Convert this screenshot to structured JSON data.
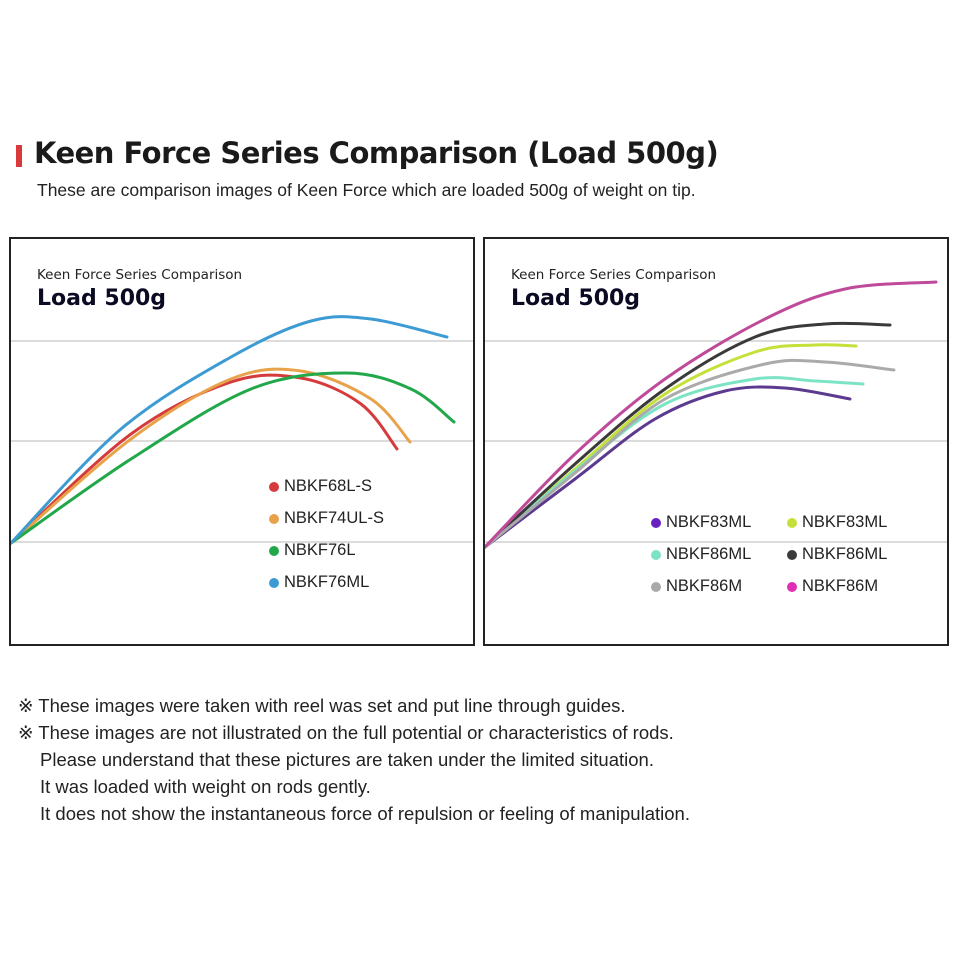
{
  "header": {
    "title": "Keen Force Series Comparison (Load 500g)",
    "subtitle": "These are comparison images of Keen Force which are loaded 500g of weight on tip.",
    "accent": "#d8393b"
  },
  "chart_data": [
    {
      "type": "line",
      "subtitle": "Keen Force Series Comparison",
      "title": "Load 500g",
      "legend_position": "bottom-right",
      "grid": true,
      "series": [
        {
          "name": "NBKF68L-S",
          "color": "#d63b3b"
        },
        {
          "name": "NBKF74UL-S",
          "color": "#e8a24a"
        },
        {
          "name": "NBKF76L",
          "color": "#22a84a"
        },
        {
          "name": "NBKF76ML",
          "color": "#3d9bd4"
        }
      ]
    },
    {
      "type": "line",
      "subtitle": "Keen Force Series Comparison",
      "title": "Load 500g",
      "legend_position": "bottom-right",
      "grid": true,
      "series": [
        {
          "name": "NBKF83ML",
          "color": "#6a1fc0",
          "line_color": "#5b3a8f"
        },
        {
          "name": "NBKF83ML",
          "color": "#c6e03a"
        },
        {
          "name": "NBKF86ML",
          "color": "#7de3c5"
        },
        {
          "name": "NBKF86ML",
          "color": "#3a3a3a"
        },
        {
          "name": "NBKF86M",
          "color": "#aaaaaa"
        },
        {
          "name": "NBKF86M",
          "color": "#e02fb5",
          "line_color": "#c04a9a"
        }
      ]
    }
  ],
  "notes": [
    "※ These images were taken with reel was set and put line through guides.",
    "※ These images are not illustrated on the full potential or characteristics of rods.",
    "Please understand that these pictures are taken under the limited situation.",
    "It was loaded with weight on rods gently.",
    "It does not show the instantaneous force of repulsion or feeling of manipulation."
  ]
}
